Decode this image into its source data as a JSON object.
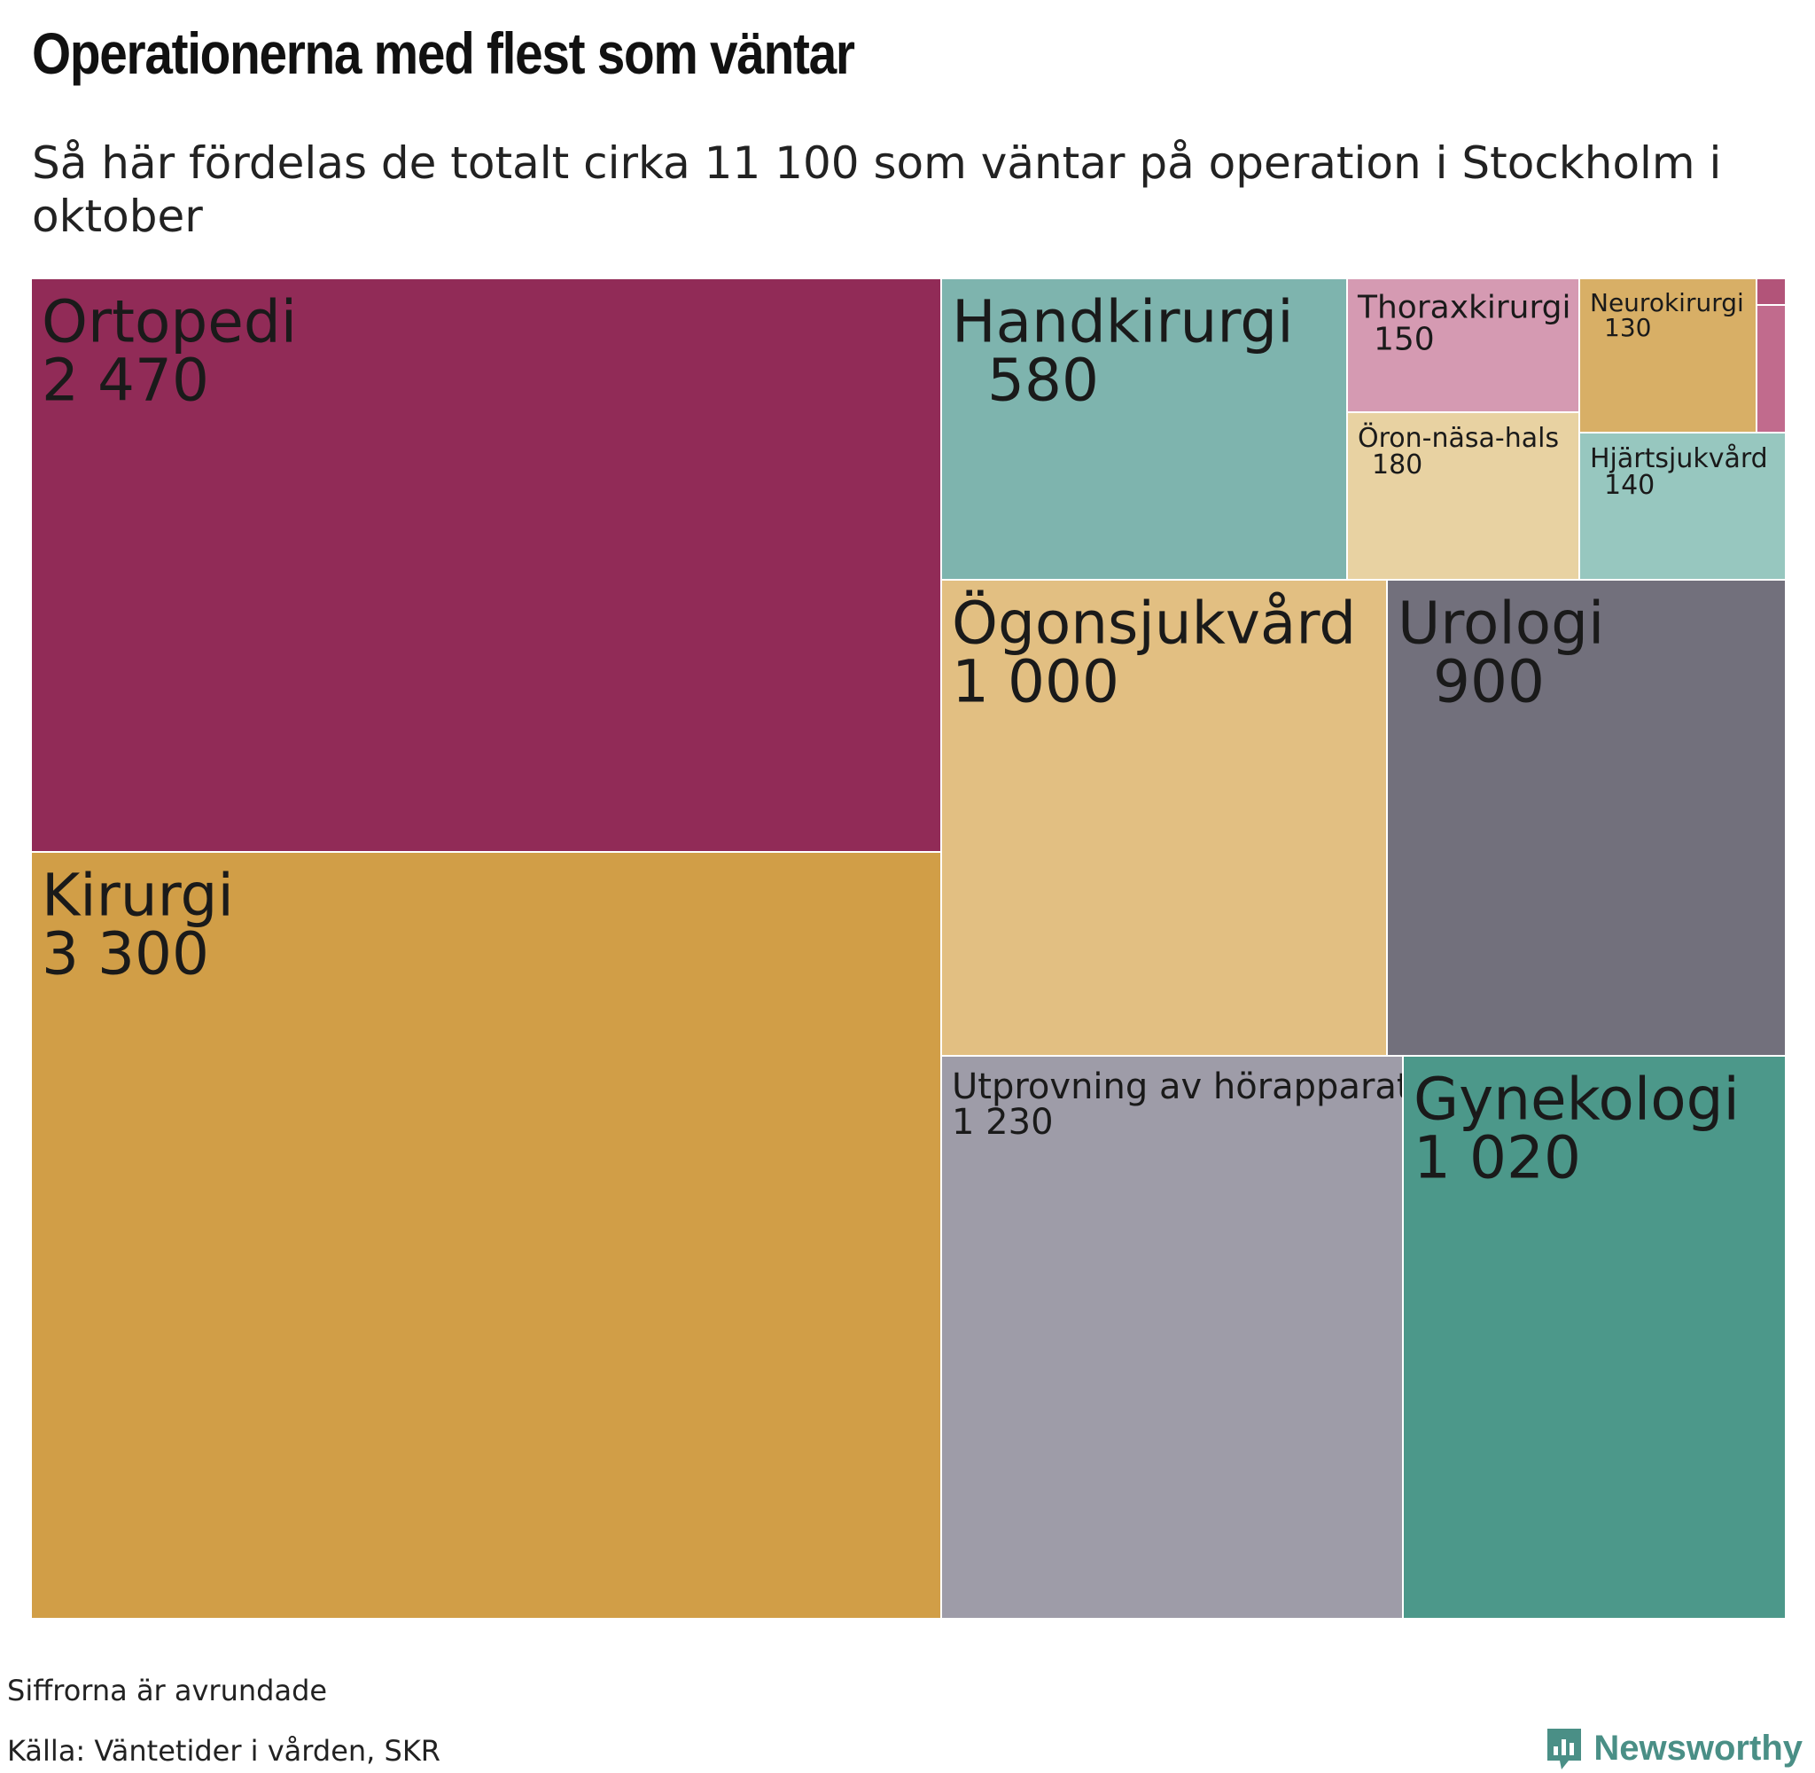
{
  "header": {
    "title": "Operationerna med flest som väntar",
    "subtitle": "Så här fördelas de totalt cirka 11 100 som väntar på operation i Stockholm i oktober"
  },
  "chart_data": {
    "type": "treemap",
    "total": "11 100",
    "items": [
      {
        "name": "Kirurgi",
        "value": 3300,
        "value_label": "3 300",
        "color": "#D19E47"
      },
      {
        "name": "Ortopedi",
        "value": 2470,
        "value_label": "2 470",
        "color": "#912B57"
      },
      {
        "name": "Utprovning av hörapparat",
        "value": 1230,
        "value_label": "1 230",
        "color": "#9E9CA8"
      },
      {
        "name": "Gynekologi",
        "value": 1020,
        "value_label": "1 020",
        "color": "#4C988A"
      },
      {
        "name": "Ögonsjukvård",
        "value": 1000,
        "value_label": "1 000",
        "color": "#E2BF82"
      },
      {
        "name": "Urologi",
        "value": 900,
        "value_label": "900",
        "color": "#72707C"
      },
      {
        "name": "Handkirurgi",
        "value": 580,
        "value_label": "580",
        "color": "#7EB4AE"
      },
      {
        "name": "Öron-näsa-hals",
        "value": 180,
        "value_label": "180",
        "color": "#E8D2A2"
      },
      {
        "name": "Thoraxkirurgi",
        "value": 150,
        "value_label": "150",
        "color": "#D59AB2"
      },
      {
        "name": "Hjärtsjukvård",
        "value": 140,
        "value_label": "140",
        "color": "#97C7BF"
      },
      {
        "name": "Neurokirurgi",
        "value": 130,
        "value_label": "130",
        "color": "#D8AF66"
      },
      {
        "name": "",
        "value": null,
        "value_label": "",
        "color": "#C16B8D"
      },
      {
        "name": "",
        "value": null,
        "value_label": "",
        "color": "#B25479"
      }
    ]
  },
  "footer": {
    "note": "Siffrorna är avrundade",
    "source": "Källa: Väntetider i vården, SKR",
    "brand": "Newsworthy",
    "brand_icon": "newsworthy-logo-icon",
    "brand_color": "#4A8F86"
  }
}
